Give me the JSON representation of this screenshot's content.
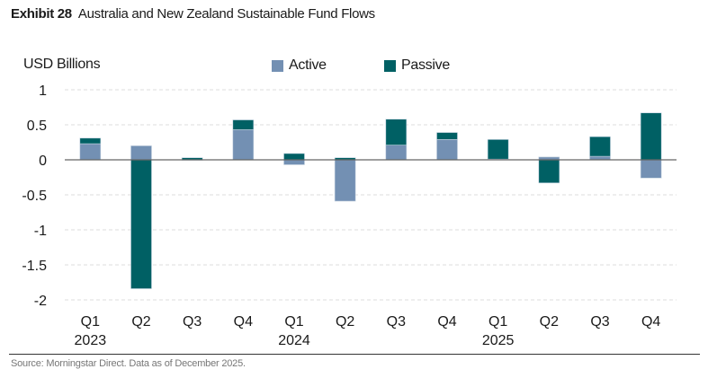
{
  "header": {
    "exhibit": "Exhibit 28",
    "title": "Australia and New Zealand Sustainable Fund Flows"
  },
  "footer": {
    "source": "Source: Morningstar Direct. Data as of December 2025."
  },
  "colors": {
    "active": "#7390b3",
    "passive": "#006064",
    "axis": "#666666",
    "grid": "#dddddd"
  },
  "chart_data": {
    "type": "bar",
    "stacked": true,
    "title": "Australia and New Zealand Sustainable Fund Flows",
    "xlabel": "",
    "ylabel": "USD Billions",
    "ylim": [
      -2,
      1
    ],
    "yticks": [
      1,
      0.5,
      0,
      -0.5,
      -1,
      -1.5,
      -2
    ],
    "ytick_labels": [
      "1",
      "0.5",
      "0",
      "-0.5",
      "-1",
      "-1.5",
      "-2"
    ],
    "grid": true,
    "legend_position": "top-center",
    "categories": [
      "Q1 2023",
      "Q2 2023",
      "Q3 2023",
      "Q4 2023",
      "Q1 2024",
      "Q2 2024",
      "Q3 2024",
      "Q4 2024",
      "Q1 2025",
      "Q2 2025",
      "Q3 2025",
      "Q4 2025"
    ],
    "tick_quarters": [
      "Q1",
      "Q2",
      "Q3",
      "Q4",
      "Q1",
      "Q2",
      "Q3",
      "Q4",
      "Q1",
      "Q2",
      "Q3",
      "Q4"
    ],
    "tick_years": [
      "2023",
      "",
      "",
      "",
      "2024",
      "",
      "",
      "",
      "2025",
      "",
      "",
      ""
    ],
    "series": [
      {
        "name": "Active",
        "values": [
          0.23,
          0.2,
          0.0,
          0.43,
          -0.07,
          -0.59,
          0.21,
          0.29,
          0.01,
          0.04,
          0.05,
          -0.26
        ]
      },
      {
        "name": "Passive",
        "values": [
          0.08,
          -1.84,
          0.03,
          0.14,
          0.09,
          0.03,
          0.37,
          0.1,
          0.28,
          -0.33,
          0.28,
          0.67
        ]
      }
    ]
  }
}
